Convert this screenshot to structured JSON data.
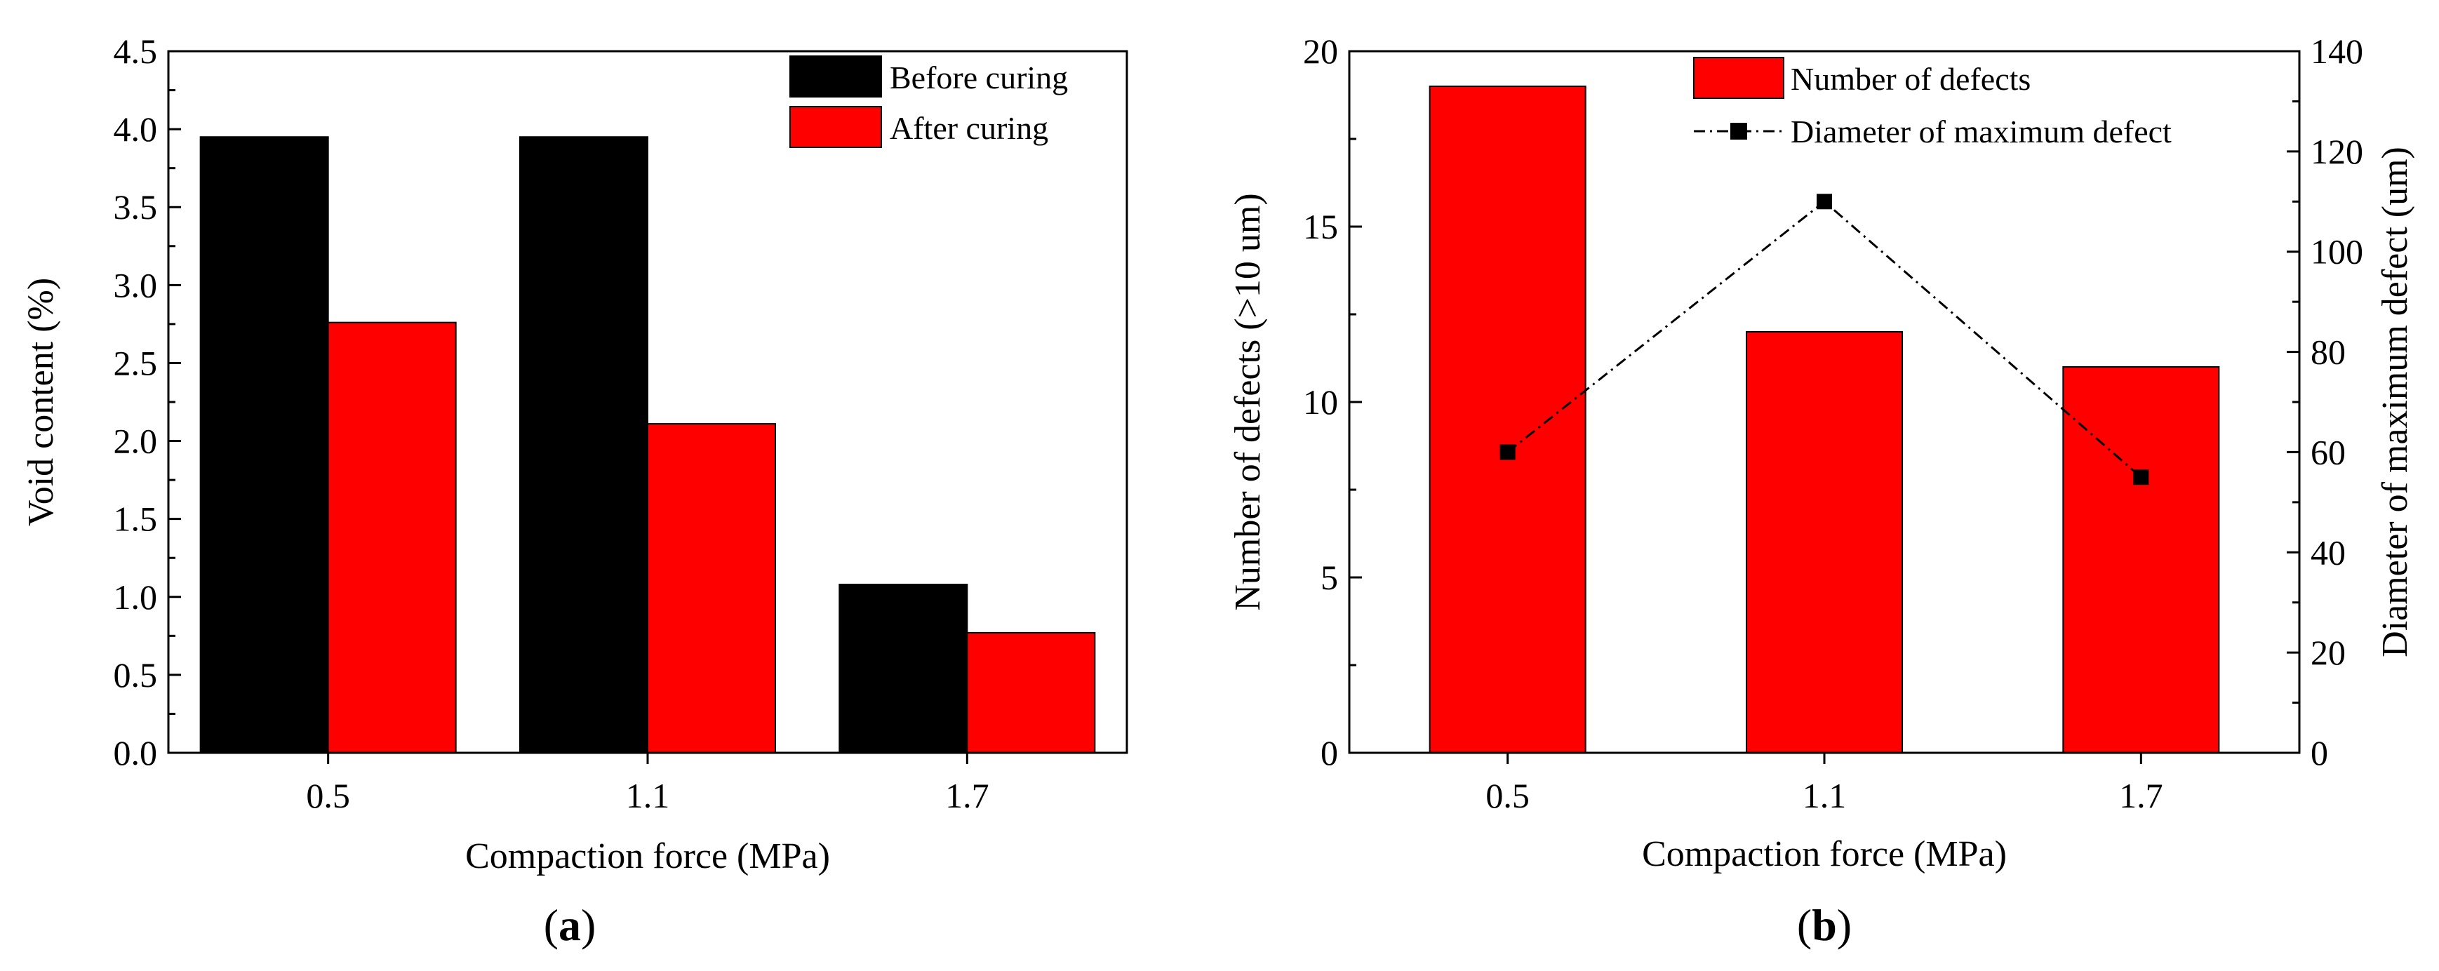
{
  "colors": {
    "before": "#000000",
    "after": "#ff0000",
    "defects": "#ff0000",
    "line": "#000000"
  },
  "panels": {
    "a": {
      "label_open": "(",
      "label_letter": "a",
      "label_close": ")"
    },
    "b": {
      "label_open": "(",
      "label_letter": "b",
      "label_close": ")"
    }
  },
  "chart_data": [
    {
      "type": "bar",
      "panel": "a",
      "categories": [
        "0.5",
        "1.1",
        "1.7"
      ],
      "series": [
        {
          "name": "Before curing",
          "values": [
            3.95,
            3.95,
            1.08
          ]
        },
        {
          "name": "After curing",
          "values": [
            2.76,
            2.11,
            0.77
          ]
        }
      ],
      "xlabel": "Compaction force (MPa)",
      "ylabel": "Void content (%)",
      "ylim": [
        0,
        4.5
      ],
      "yticks": [
        "0.0",
        "0.5",
        "1.0",
        "1.5",
        "2.0",
        "2.5",
        "3.0",
        "3.5",
        "4.0",
        "4.5"
      ],
      "grid": false,
      "legend_position": "top-right"
    },
    {
      "type": "bar+line",
      "panel": "b",
      "categories": [
        "0.5",
        "1.1",
        "1.7"
      ],
      "series": [
        {
          "name": "Number of defects",
          "kind": "bar",
          "axis": "left",
          "values": [
            19,
            12,
            11
          ]
        },
        {
          "name": "Diameter of maximum defect",
          "kind": "line",
          "axis": "right",
          "values": [
            60,
            110,
            55
          ]
        }
      ],
      "xlabel": "Compaction force (MPa)",
      "ylabel_left": "Number of defects (>10 um)",
      "ylabel_right": "Diameter of maximum defect (um)",
      "ylim_left": [
        0,
        20
      ],
      "ylim_right": [
        0,
        140
      ],
      "yticks_left": [
        "0",
        "5",
        "10",
        "15",
        "20"
      ],
      "yticks_right": [
        "0",
        "20",
        "40",
        "60",
        "80",
        "100",
        "120",
        "140"
      ],
      "grid": false,
      "legend_position": "top-center"
    }
  ]
}
